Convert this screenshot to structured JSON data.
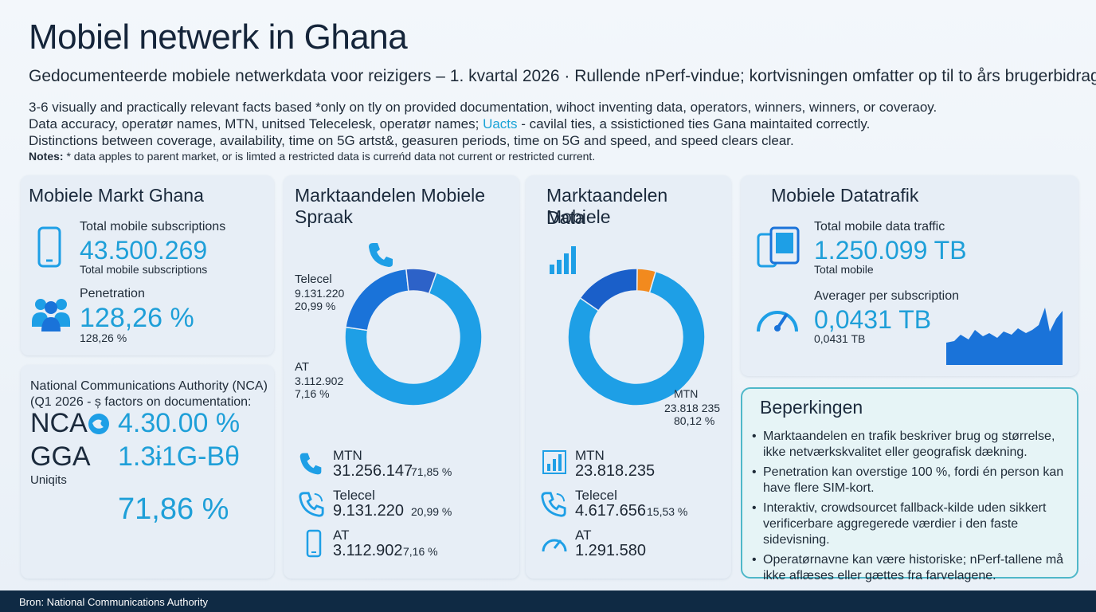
{
  "header": {
    "title": "Mobiel netwerk in Ghana",
    "subtitle": "Gedocumenteerde mobiele netwerkdata voor reizigers – 1. kvartal 2026 · Rullende nPerf-vindue; kortvisningen omfatter op til to års brugerbidrag.",
    "intro_line1": "3-6 visually and  practically relevant facts based *only on tly on provided documentation, wihoct inventing data, operators, winners, winners, or coveraoy.",
    "intro_line2a": "Data accuracy, operatør names, MTN, unitsed Telecelesk, operatør names; ",
    "intro_line2_accent": "Uacts",
    "intro_line2b": " - cavilal ties, a ssistictioned ties Gana maintaited correctly.",
    "intro_line3": "Distinctions between coverage, availability, time on 5G artst&, geasuren periods, time on 5G and speed, and speed clears clear.",
    "notes_label": "Notes:",
    "notes_text": " * data apples to parent market, or is limted a restricted data is curreńd data not current or restricted current."
  },
  "market": {
    "title": "Mobiele Markt Ghana",
    "subs_label": "Total mobile subscriptions",
    "subs_value": "43.500.269",
    "subs_caption": "Total mobile subscriptions",
    "pen_label": "Penetration",
    "pen_value": "128,26 %",
    "pen_caption": "128,26 %"
  },
  "nca": {
    "line1": "National Communications Authority (NCA)",
    "line2": "(Q1 2026 - ș factors on documentation:",
    "label_nca": "NCA",
    "value_nca": "4.30.00 %",
    "label_gga": "GGA",
    "value_gga": "1.3ɨ1G-Bθ",
    "units": "Uniqits",
    "value_units": "71,86 %"
  },
  "voice": {
    "title": "Marktaandelen Mobiele Spraak",
    "telecel_label": "Telecel",
    "telecel_value": "9.131.220",
    "telecel_pct": "20,99 %",
    "at_label": "AT",
    "at_value": "3.112.902",
    "at_pct": "7,16 %",
    "list": [
      {
        "name": "MTN",
        "value": "31.256.147",
        "pct": "71,85 %"
      },
      {
        "name": "Telecel",
        "value": "9.131.220",
        "pct": "20,99 %"
      },
      {
        "name": "AT",
        "value": "3.112.902",
        "pct": "7,16 %"
      }
    ]
  },
  "data_share": {
    "title_line1": "Marktaandelen Mobiele",
    "title_line2": "Data",
    "mtn_label": "MTN",
    "mtn_value": "23.818 235",
    "mtn_pct": "80,12 %",
    "list": [
      {
        "name": "MTN",
        "value": "23.818.235"
      },
      {
        "name": "Telecel",
        "value": "4.617.656",
        "pct": "15,53 %"
      },
      {
        "name": "AT",
        "value": "1.291.580"
      }
    ]
  },
  "traffic": {
    "title": "Mobiele Datatrafik",
    "total_label": "Total mobile data traffic",
    "total_value": "1.250.099 TB",
    "total_caption": "Total mobile",
    "avg_label": "Averager per subscription",
    "avg_value": "0,0431 TB",
    "avg_caption": "0,0431 TB"
  },
  "limitations": {
    "title": "Beperkingen",
    "items": [
      "Markt­aandelen en trafik beskriver brug og størrelse, ikke netværkskvalitet eller geografisk dækning.",
      "Penetration kan overstige 100 %, fordi én person kan have flere SIM-kort.",
      "Interaktiv, crowdsourcet fallback-kilde uden sikkert verificerbare aggregerede værdier i den faste sidevisning.",
      "Operatørnavne kan være historiske; nPerf-tallene må ikke aflæses eller gættes fra farvelagene."
    ]
  },
  "footer": {
    "source": "Bron: National Communications Authority"
  },
  "chart_data": [
    {
      "type": "pie",
      "title": "Marktaandelen Mobiele Spraak",
      "categories": [
        "MTN",
        "Telecel",
        "AT"
      ],
      "values": [
        71.85,
        20.99,
        7.16
      ],
      "colors": [
        "#1e9fe6",
        "#1a73d9",
        "#2d62c8"
      ]
    },
    {
      "type": "pie",
      "title": "Marktaandelen Mobiele Data",
      "categories": [
        "MTN",
        "Telecel",
        "AT"
      ],
      "values": [
        80.12,
        15.53,
        4.35
      ],
      "colors": [
        "#1e9fe6",
        "#1a5fc9",
        "#f28a1e"
      ]
    }
  ],
  "colors": {
    "accent": "#1e9fd8",
    "mtn": "#1e9fe6",
    "telecel": "#1a5fc9",
    "at_data": "#f28a1e",
    "footer": "#0f2a44"
  },
  "icons": [
    "phone-icon",
    "people-icon",
    "gauge-icon",
    "bar-chart-icon",
    "devices-icon",
    "area-chart-icon"
  ]
}
